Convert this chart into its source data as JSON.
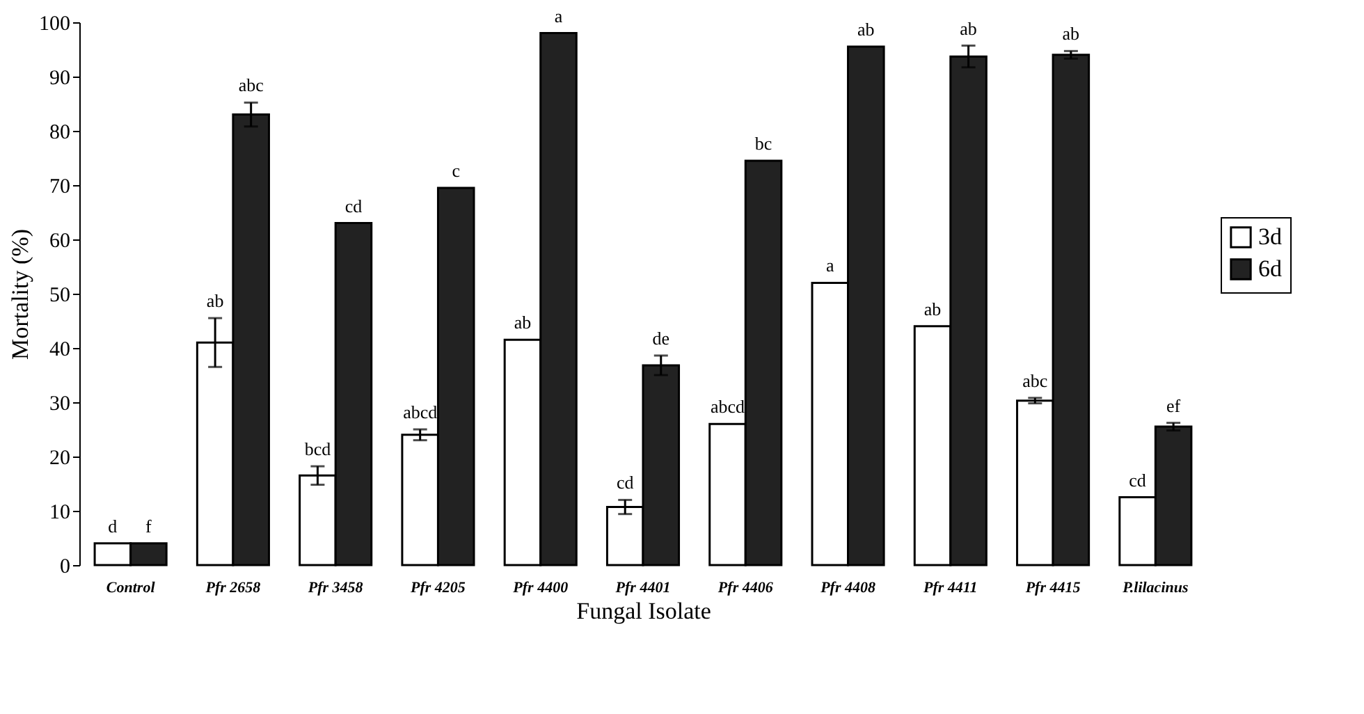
{
  "chart_data": {
    "type": "bar",
    "xlabel": "Fungal Isolate",
    "ylabel": "Mortality (%)",
    "categories": [
      "Control",
      "Pfr 2658",
      "Pfr 3458",
      "Pfr 4205",
      "Pfr 4400",
      "Pfr 4401",
      "Pfr 4406",
      "Pfr 4408",
      "Pfr 4411",
      "Pfr 4415",
      "P.lilacinus"
    ],
    "series": [
      {
        "name": "3d",
        "color": "#ffffff",
        "values": [
          4,
          41,
          16.5,
          24,
          41.5,
          10.7,
          26,
          52,
          44,
          30.3,
          12.5
        ],
        "errors": [
          null,
          4.5,
          1.7,
          1,
          null,
          1.3,
          null,
          null,
          null,
          0.5,
          null
        ],
        "value_labels": [
          "d",
          "ab",
          "bcd",
          "abcd",
          "ab",
          "cd",
          "abcd",
          "a",
          "ab",
          "abc",
          "cd"
        ]
      },
      {
        "name": "6d",
        "color": "#222222",
        "values": [
          4,
          83,
          63,
          69.5,
          98,
          36.8,
          74.5,
          95.5,
          93.7,
          94,
          25.5
        ],
        "errors": [
          null,
          2.2,
          null,
          null,
          null,
          1.8,
          null,
          null,
          2,
          0.7,
          0.7
        ],
        "value_labels": [
          "f",
          "abc",
          "cd",
          "c",
          "a",
          "de",
          "bc",
          "ab",
          "ab",
          "ab",
          "ef"
        ]
      }
    ],
    "ylim": [
      0,
      100
    ],
    "yticks": [
      0,
      10,
      20,
      30,
      40,
      50,
      60,
      70,
      80,
      90,
      100
    ],
    "grid": false,
    "legend": "right"
  }
}
